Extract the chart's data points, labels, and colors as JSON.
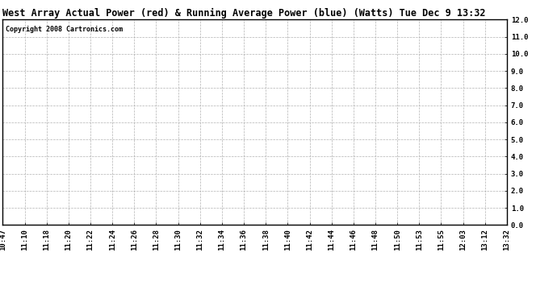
{
  "title": "West Array Actual Power (red) & Running Average Power (blue) (Watts) Tue Dec 9 13:32",
  "copyright_text": "Copyright 2008 Cartronics.com",
  "x_labels": [
    "10:47",
    "11:10",
    "11:18",
    "11:20",
    "11:22",
    "11:24",
    "11:26",
    "11:28",
    "11:30",
    "11:32",
    "11:34",
    "11:36",
    "11:38",
    "11:40",
    "11:42",
    "11:44",
    "11:46",
    "11:48",
    "11:50",
    "11:53",
    "11:55",
    "12:03",
    "13:12",
    "13:32"
  ],
  "y_min": 0.0,
  "y_max": 12.0,
  "y_ticks": [
    0.0,
    1.0,
    2.0,
    3.0,
    4.0,
    5.0,
    6.0,
    7.0,
    8.0,
    9.0,
    10.0,
    11.0,
    12.0
  ],
  "bg_color": "#ffffff",
  "grid_color": "#aaaaaa",
  "title_fontsize": 8.5,
  "tick_fontsize": 6.5,
  "copyright_fontsize": 6,
  "border_color": "#000000"
}
